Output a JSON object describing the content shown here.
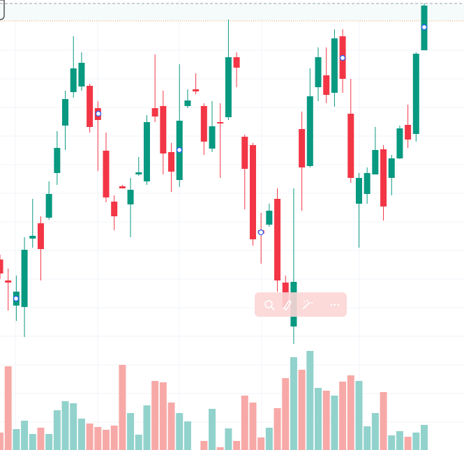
{
  "chart_data": {
    "type": "candlestick",
    "series": [
      {
        "name": "price",
        "up_color": "#089981",
        "down_color": "#f23645",
        "open": [
          128,
          98,
          62,
          60,
          158,
          180,
          188,
          252,
          320,
          368,
          376,
          377,
          345,
          284,
          211,
          233,
          207,
          250,
          240,
          345,
          348,
          282,
          242,
          348,
          372,
          348,
          287,
          325,
          332,
          418,
          304,
          292,
          170,
          178,
          215,
          95,
          32,
          315,
          262,
          375,
          392,
          367,
          448,
          337,
          208,
          222,
          250,
          286,
          245,
          273,
          321,
          308,
          428
        ],
        "high": [
          135,
          115,
          105,
          160,
          215,
          190,
          240,
          312,
          370,
          448,
          425,
          380,
          355,
          310,
          220,
          235,
          245,
          275,
          335,
          422,
          370,
          295,
          408,
          372,
          395,
          352,
          355,
          352,
          472,
          425,
          307,
          295,
          195,
          208,
          230,
          105,
          230,
          340,
          402,
          432,
          432,
          458,
          458,
          387,
          252,
          260,
          318,
          292,
          278,
          320,
          350,
          425,
          495
        ],
        "low": [
          100,
          55,
          40,
          17,
          145,
          98,
          185,
          235,
          285,
          360,
          370,
          310,
          255,
          210,
          170,
          230,
          160,
          248,
          235,
          325,
          250,
          225,
          232,
          345,
          365,
          278,
          282,
          245,
          328,
          375,
          200,
          148,
          122,
          175,
          82,
          55,
          7,
          198,
          260,
          355,
          352,
          347,
          367,
          238,
          145,
          208,
          250,
          184,
          220,
          272,
          288,
          297,
          428
        ],
        "close": [
          108,
          95,
          82,
          142,
          162,
          143,
          222,
          288,
          358,
          402,
          410,
          318,
          328,
          217,
          190,
          230,
          228,
          253,
          325,
          333,
          280,
          254,
          327,
          356,
          369,
          297,
          319,
          324,
          418,
          403,
          258,
          157,
          165,
          198,
          98,
          60,
          96,
          260,
          362,
          418,
          364,
          445,
          387,
          245,
          245,
          252,
          285,
          204,
          273,
          316,
          300,
          423,
          492
        ]
      },
      {
        "name": "volume",
        "axis": "y2",
        "up_color": "#92d2cc",
        "down_color": "#f7a9a7",
        "values": [
          25,
          120,
          30,
          42,
          23,
          32,
          23,
          57,
          70,
          67,
          45,
          38,
          33,
          29,
          35,
          122,
          53,
          22,
          64,
          99,
          97,
          68,
          53,
          41,
          null,
          13,
          59,
          4,
          31,
          13,
          78,
          68,
          18,
          32,
          60,
          103,
          133,
          115,
          142,
          89,
          85,
          78,
          98,
          107,
          99,
          34,
          53,
          83,
          21,
          27,
          19,
          25,
          36
        ]
      }
    ],
    "ylim": [
      0,
      500
    ],
    "y2lim": [
      0,
      160
    ]
  }
}
